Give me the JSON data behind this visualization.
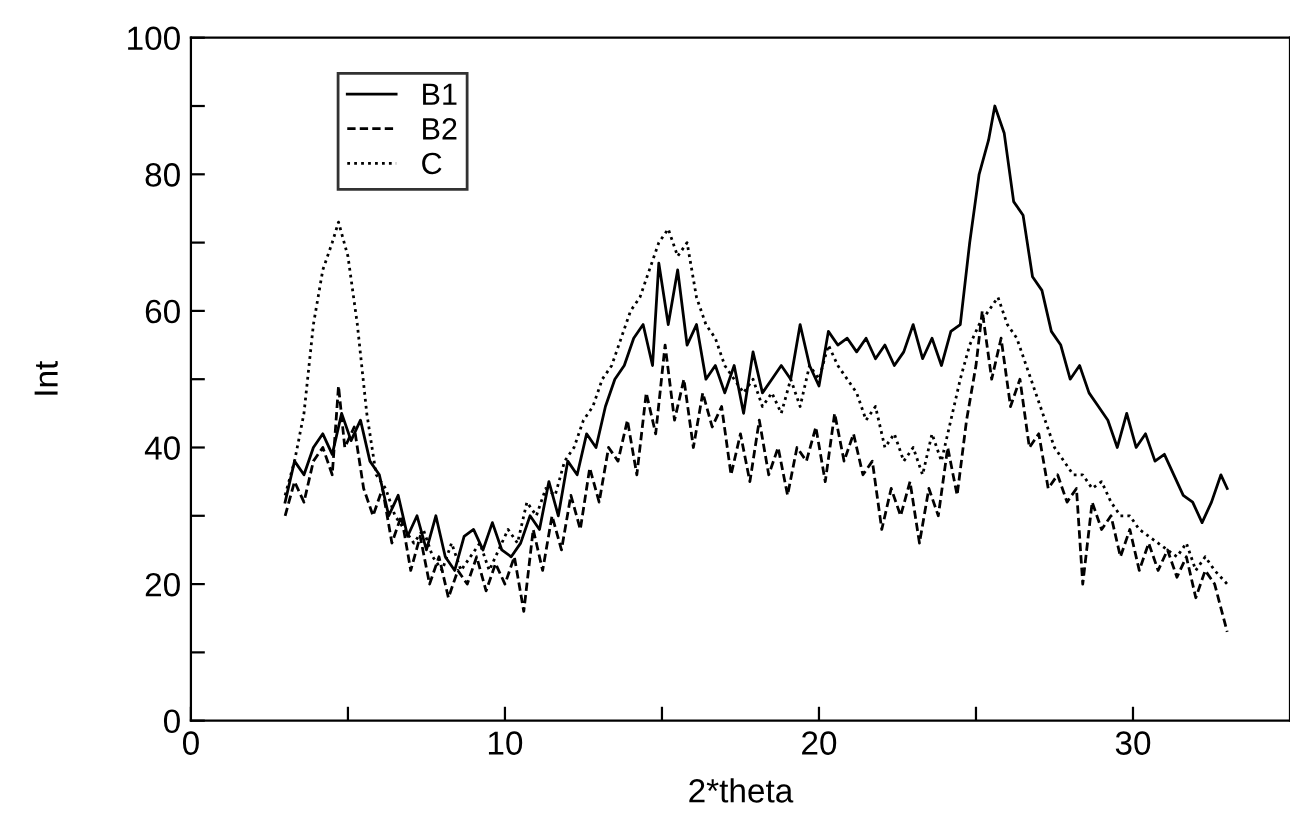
{
  "chart_data": {
    "type": "line",
    "xlabel": "2*theta",
    "ylabel": "Int",
    "xlim": [
      0,
      35
    ],
    "ylim": [
      0,
      100
    ],
    "xticks": [
      0,
      {
        "value": 5,
        "label": null
      },
      10,
      {
        "value": 15,
        "label": null
      },
      20,
      {
        "value": 25,
        "label": null
      },
      30
    ],
    "yticks": [
      0,
      {
        "value": 10,
        "label": null
      },
      20,
      {
        "value": 30,
        "label": null
      },
      40,
      {
        "value": 50,
        "label": null
      },
      60,
      {
        "value": 70,
        "label": null
      },
      80,
      {
        "value": 90,
        "label": null
      },
      100
    ],
    "grid": false,
    "legend": "top left",
    "marker": "none",
    "series": [
      {
        "name": "B1",
        "color": "#000000",
        "line_style": "solid",
        "x": [
          3.0,
          3.3,
          3.6,
          3.9,
          4.2,
          4.5,
          4.8,
          5.1,
          5.4,
          5.7,
          6.0,
          6.3,
          6.6,
          6.9,
          7.2,
          7.5,
          7.8,
          8.1,
          8.4,
          8.7,
          9.0,
          9.3,
          9.6,
          9.9,
          10.2,
          10.5,
          10.8,
          11.1,
          11.4,
          11.7,
          12.0,
          12.3,
          12.6,
          12.9,
          13.2,
          13.5,
          13.8,
          14.1,
          14.4,
          14.7,
          14.9,
          15.2,
          15.5,
          15.8,
          16.1,
          16.4,
          16.7,
          17.0,
          17.3,
          17.6,
          17.9,
          18.2,
          18.5,
          18.8,
          19.1,
          19.4,
          19.7,
          20.0,
          20.3,
          20.6,
          20.9,
          21.2,
          21.5,
          21.8,
          22.1,
          22.4,
          22.7,
          23.0,
          23.3,
          23.6,
          23.9,
          24.2,
          24.5,
          24.8,
          25.1,
          25.4,
          25.6,
          25.9,
          26.2,
          26.5,
          26.8,
          27.1,
          27.4,
          27.7,
          28.0,
          28.3,
          28.6,
          28.9,
          29.2,
          29.5,
          29.8,
          30.1,
          30.4,
          30.7,
          31.0,
          31.3,
          31.6,
          31.9,
          32.2,
          32.5,
          32.8,
          33.0
        ],
        "values": [
          32,
          38,
          36,
          40,
          42,
          39,
          45,
          41,
          44,
          38,
          36,
          30,
          33,
          27,
          30,
          25,
          30,
          24,
          22,
          27,
          28,
          25,
          29,
          25,
          24,
          26,
          30,
          28,
          35,
          30,
          38,
          36,
          42,
          40,
          46,
          50,
          52,
          56,
          58,
          52,
          67,
          58,
          66,
          55,
          58,
          50,
          52,
          48,
          52,
          45,
          54,
          48,
          50,
          52,
          50,
          58,
          52,
          49,
          57,
          55,
          56,
          54,
          56,
          53,
          55,
          52,
          54,
          58,
          53,
          56,
          52,
          57,
          58,
          70,
          80,
          85,
          90,
          86,
          76,
          74,
          65,
          63,
          57,
          55,
          50,
          52,
          48,
          46,
          44,
          40,
          45,
          40,
          42,
          38,
          39,
          36,
          33,
          32,
          29,
          32,
          36,
          34
        ]
      },
      {
        "name": "B2",
        "color": "#000000",
        "line_style": "dashed",
        "x": [
          3.0,
          3.3,
          3.6,
          3.9,
          4.2,
          4.5,
          4.7,
          4.9,
          5.2,
          5.5,
          5.8,
          6.1,
          6.4,
          6.7,
          7.0,
          7.3,
          7.6,
          7.9,
          8.2,
          8.5,
          8.8,
          9.1,
          9.4,
          9.7,
          10.0,
          10.3,
          10.6,
          10.9,
          11.2,
          11.5,
          11.8,
          12.1,
          12.4,
          12.7,
          13.0,
          13.3,
          13.6,
          13.9,
          14.2,
          14.5,
          14.8,
          15.1,
          15.4,
          15.7,
          16.0,
          16.3,
          16.6,
          16.9,
          17.2,
          17.5,
          17.8,
          18.1,
          18.4,
          18.7,
          19.0,
          19.3,
          19.6,
          19.9,
          20.2,
          20.5,
          20.8,
          21.1,
          21.4,
          21.7,
          22.0,
          22.3,
          22.6,
          22.9,
          23.2,
          23.5,
          23.8,
          24.1,
          24.4,
          24.7,
          25.0,
          25.2,
          25.5,
          25.8,
          26.1,
          26.4,
          26.7,
          27.0,
          27.3,
          27.6,
          27.9,
          28.2,
          28.4,
          28.7,
          29.0,
          29.3,
          29.6,
          29.9,
          30.2,
          30.5,
          30.8,
          31.1,
          31.4,
          31.7,
          32.0,
          32.3,
          32.6,
          33.0
        ],
        "values": [
          30,
          35,
          32,
          38,
          40,
          36,
          49,
          40,
          43,
          34,
          30,
          34,
          26,
          30,
          22,
          27,
          20,
          24,
          18,
          22,
          20,
          24,
          19,
          23,
          20,
          24,
          16,
          28,
          22,
          30,
          25,
          33,
          28,
          37,
          32,
          40,
          38,
          44,
          36,
          48,
          42,
          55,
          44,
          50,
          40,
          48,
          43,
          46,
          36,
          42,
          35,
          44,
          36,
          40,
          33,
          40,
          38,
          43,
          35,
          45,
          38,
          42,
          36,
          38,
          28,
          34,
          30,
          35,
          26,
          34,
          30,
          40,
          33,
          44,
          52,
          60,
          50,
          56,
          46,
          50,
          40,
          42,
          34,
          36,
          32,
          34,
          20,
          32,
          28,
          30,
          24,
          28,
          22,
          26,
          22,
          25,
          21,
          24,
          18,
          22,
          20,
          13
        ]
      },
      {
        "name": "C",
        "color": "#000000",
        "line_style": "dotted",
        "x": [
          3.0,
          3.3,
          3.6,
          3.9,
          4.2,
          4.5,
          4.7,
          5.0,
          5.3,
          5.6,
          5.9,
          6.2,
          6.5,
          6.8,
          7.1,
          7.4,
          7.7,
          8.0,
          8.3,
          8.6,
          8.9,
          9.2,
          9.5,
          9.8,
          10.1,
          10.4,
          10.7,
          11.0,
          11.3,
          11.6,
          11.9,
          12.2,
          12.5,
          12.8,
          13.1,
          13.4,
          13.7,
          14.0,
          14.3,
          14.6,
          14.9,
          15.2,
          15.5,
          15.8,
          16.1,
          16.4,
          16.7,
          17.0,
          17.3,
          17.6,
          17.9,
          18.2,
          18.5,
          18.8,
          19.1,
          19.4,
          19.7,
          20.0,
          20.3,
          20.6,
          20.9,
          21.2,
          21.5,
          21.8,
          22.1,
          22.4,
          22.7,
          23.0,
          23.3,
          23.6,
          23.9,
          24.2,
          24.5,
          24.8,
          25.1,
          25.4,
          25.7,
          26.0,
          26.3,
          26.6,
          26.9,
          27.2,
          27.5,
          27.8,
          28.1,
          28.4,
          28.7,
          29.0,
          29.3,
          29.6,
          29.9,
          30.2,
          30.5,
          30.8,
          31.1,
          31.4,
          31.7,
          32.0,
          32.3,
          32.6,
          33.0
        ],
        "values": [
          33,
          38,
          45,
          58,
          66,
          70,
          73,
          68,
          58,
          45,
          36,
          34,
          30,
          28,
          26,
          28,
          24,
          22,
          26,
          22,
          24,
          26,
          22,
          25,
          28,
          26,
          32,
          30,
          34,
          33,
          38,
          40,
          44,
          46,
          50,
          52,
          56,
          60,
          62,
          66,
          70,
          72,
          68,
          70,
          62,
          58,
          56,
          52,
          50,
          48,
          50,
          46,
          48,
          45,
          50,
          46,
          52,
          50,
          55,
          52,
          50,
          48,
          44,
          46,
          40,
          42,
          38,
          40,
          36,
          42,
          38,
          44,
          50,
          55,
          58,
          60,
          62,
          58,
          56,
          52,
          48,
          44,
          40,
          38,
          36,
          36,
          34,
          35,
          32,
          30,
          30,
          28,
          27,
          26,
          25,
          24,
          26,
          22,
          24,
          22,
          20
        ]
      }
    ]
  }
}
